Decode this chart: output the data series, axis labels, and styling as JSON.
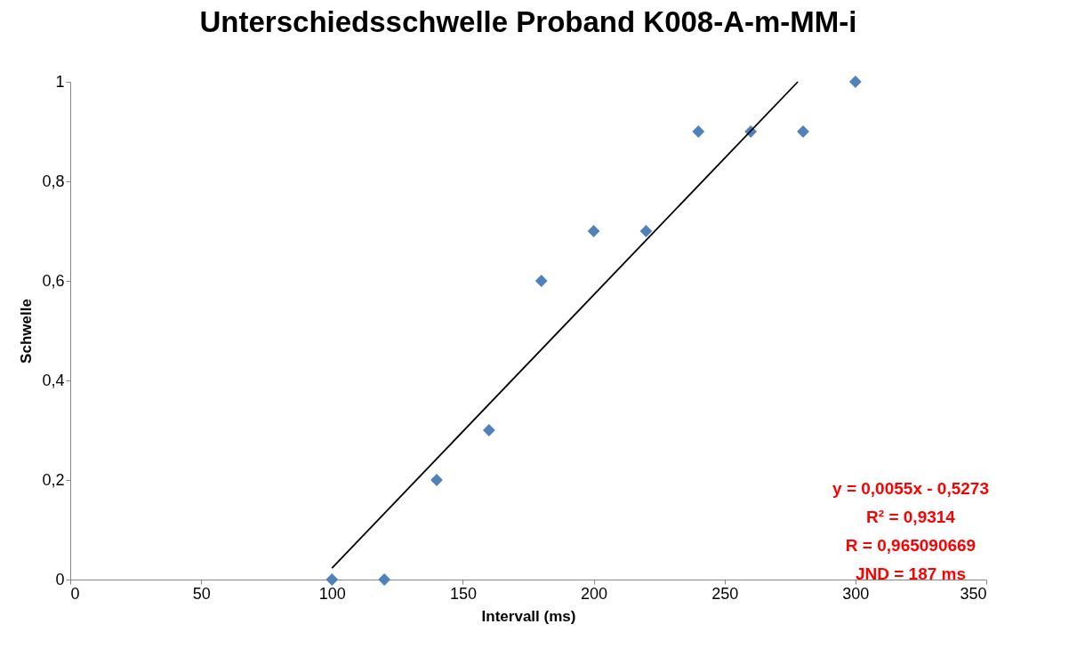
{
  "chart_data": {
    "type": "scatter",
    "title": "Unterschiedsschwelle Proband K008-A-m-MM-i",
    "xlabel": "Intervall (ms)",
    "ylabel": "Schwelle",
    "xlim": [
      0,
      350
    ],
    "xticks": [
      0,
      50,
      100,
      150,
      200,
      250,
      300,
      350
    ],
    "ylim": [
      0,
      1
    ],
    "yticks": [
      0,
      {
        "value": 0.2,
        "label": "0,2"
      },
      {
        "value": 0.4,
        "label": "0,4"
      },
      {
        "value": 0.6,
        "label": "0,6"
      },
      {
        "value": 0.8,
        "label": "0,8"
      },
      1
    ],
    "grid": false,
    "series": [
      {
        "type": "scatter",
        "marker": "diamond",
        "color": "#4f81bd",
        "x": [
          100,
          120,
          140,
          160,
          180,
          200,
          220,
          240,
          260,
          280,
          300
        ],
        "values": [
          0,
          0,
          0.2,
          0.3,
          0.6,
          0.7,
          0.7,
          0.9,
          0.9,
          0.9,
          1
        ]
      },
      {
        "type": "line",
        "color": "#000000",
        "x": [
          100,
          278
        ],
        "values": [
          0.023,
          1.0
        ]
      }
    ],
    "annotations": [
      "y = 0,0055x - 0,5273",
      "R² = 0,9314",
      "R = 0,965090669",
      "JND = 187 ms"
    ]
  }
}
